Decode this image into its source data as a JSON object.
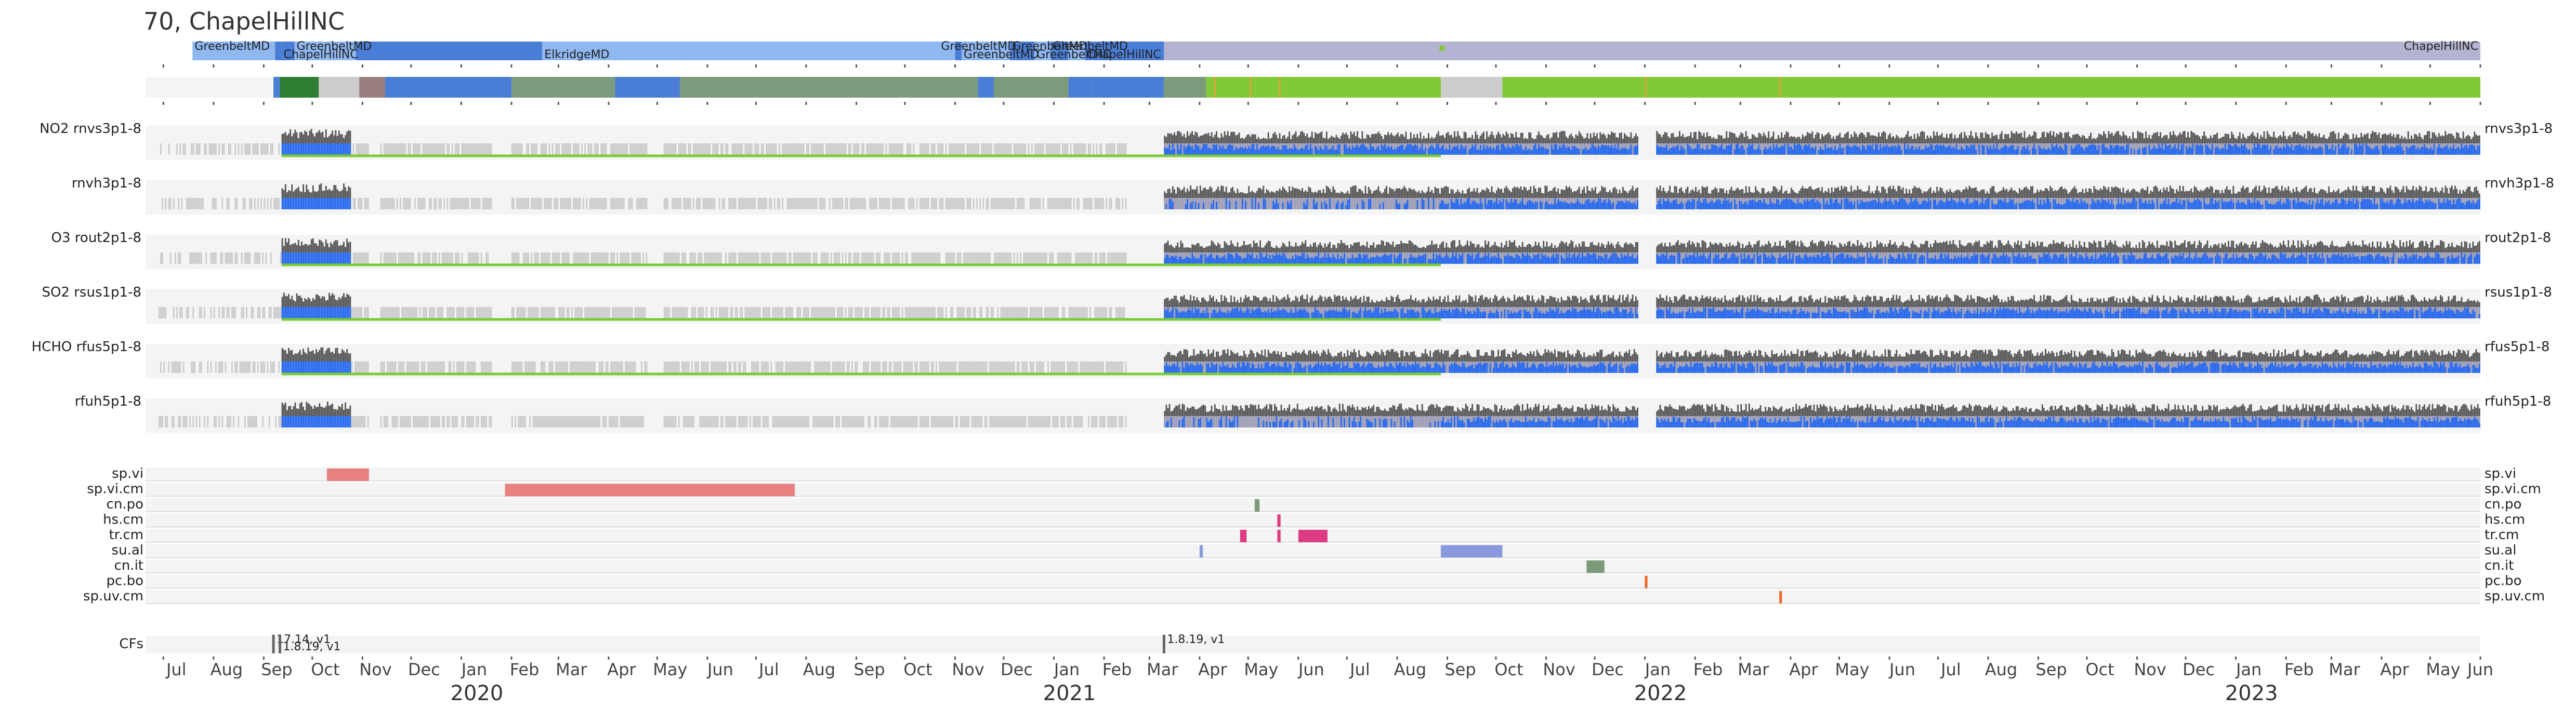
{
  "title": "70, ChapelHillNC",
  "colors": {
    "panel_bg": "#f4f4f4",
    "gray_bar": "#cccccc",
    "dark_bar": "#555555",
    "blue_bar": "#2266ee",
    "lavender_bar": "#9a9ab4",
    "green_line": "#77cc33",
    "loc_lavender": "#b4b4d2",
    "loc_blue": "#4a7ed6",
    "loc_lightblue": "#8fb7f0",
    "prog_green": "#82c93a",
    "prog_gray": "#7c9a7c",
    "prog_darkgreen": "#2e7d32",
    "flag_red": "#e88080",
    "flag_green": "#7a9a7a",
    "flag_pink": "#dd3c84",
    "flag_blue": "#8899dd",
    "flag_orange": "#ee6622",
    "cf_mark": "#666666"
  },
  "chart_data": {
    "type": "timeline",
    "title": "70, ChapelHillNC",
    "x_range": [
      "2019-06-20",
      "2023-06-01"
    ],
    "month_ticks": [
      "Jul",
      "Aug",
      "Sep",
      "Oct",
      "Nov",
      "Dec",
      "Jan",
      "Feb",
      "Mar",
      "Apr",
      "May",
      "Jun",
      "Jul",
      "Aug",
      "Sep",
      "Oct",
      "Nov",
      "Dec",
      "Jan",
      "Feb",
      "Mar",
      "Apr",
      "May",
      "Jun",
      "Jul",
      "Aug",
      "Sep",
      "Oct",
      "Nov",
      "Dec",
      "Jan",
      "Feb",
      "Mar",
      "Apr",
      "May",
      "Jun",
      "Jul",
      "Aug",
      "Sep",
      "Oct",
      "Nov",
      "Dec",
      "Jan",
      "Feb",
      "Mar",
      "Apr",
      "May",
      "Jun"
    ],
    "month_dates": [
      "2019-07-01",
      "2019-08-01",
      "2019-09-01",
      "2019-10-01",
      "2019-11-01",
      "2019-12-01",
      "2020-01-01",
      "2020-02-01",
      "2020-03-01",
      "2020-04-01",
      "2020-05-01",
      "2020-06-01",
      "2020-07-01",
      "2020-08-01",
      "2020-09-01",
      "2020-10-01",
      "2020-11-01",
      "2020-12-01",
      "2021-01-01",
      "2021-02-01",
      "2021-03-01",
      "2021-04-01",
      "2021-05-01",
      "2021-06-01",
      "2021-07-01",
      "2021-08-01",
      "2021-09-01",
      "2021-10-01",
      "2021-11-01",
      "2021-12-01",
      "2022-01-01",
      "2022-02-01",
      "2022-03-01",
      "2022-04-01",
      "2022-05-01",
      "2022-06-01",
      "2022-07-01",
      "2022-08-01",
      "2022-09-01",
      "2022-10-01",
      "2022-11-01",
      "2022-12-01",
      "2023-01-01",
      "2023-02-01",
      "2023-03-01",
      "2023-04-01",
      "2023-05-01",
      "2023-06-01"
    ],
    "years": [
      {
        "label": "2020",
        "date": "2020-01-01"
      },
      {
        "label": "2021",
        "date": "2021-01-01"
      },
      {
        "label": "2022",
        "date": "2022-01-01"
      },
      {
        "label": "2023",
        "date": "2023-01-01"
      }
    ],
    "locations": [
      {
        "start": "2019-06-20",
        "end": "2019-07-19",
        "color": "#ffffff",
        "label": ""
      },
      {
        "start": "2019-07-19",
        "end": "2019-09-08",
        "color": "#8fb7f0",
        "label": "GreenbeltMD",
        "row": 0
      },
      {
        "start": "2019-09-08",
        "end": "2019-09-12",
        "color": "#4a7ed6",
        "label": "",
        "row": 0
      },
      {
        "start": "2019-09-12",
        "end": "2019-09-20",
        "color": "#4a7ed6",
        "label": "ChapelHillNC",
        "row": 1
      },
      {
        "start": "2019-09-20",
        "end": "2019-10-28",
        "color": "#8fb7f0",
        "label": "GreenbeltMD",
        "row": 0
      },
      {
        "start": "2019-10-28",
        "end": "2020-02-20",
        "color": "#4a7ed6",
        "label": "",
        "row": 0
      },
      {
        "start": "2020-02-20",
        "end": "2020-10-22",
        "color": "#8fb7f0",
        "label": "ElkridgeMD",
        "row": 1
      },
      {
        "start": "2020-10-22",
        "end": "2020-11-01",
        "color": "#8fb7f0",
        "label": "GreenbeltMD",
        "row": 0
      },
      {
        "start": "2020-11-01",
        "end": "2020-11-05",
        "color": "#4a7ed6",
        "label": "",
        "row": 0
      },
      {
        "start": "2020-11-05",
        "end": "2020-12-05",
        "color": "#8fb7f0",
        "label": "GreenbeltMD",
        "row": 1
      },
      {
        "start": "2020-12-05",
        "end": "2020-12-20",
        "color": "#4a7ed6",
        "label": "GreenbeltMD",
        "row": 0
      },
      {
        "start": "2020-12-20",
        "end": "2020-12-30",
        "color": "#8fb7f0",
        "label": "GreenbeltMD",
        "row": 1
      },
      {
        "start": "2020-12-30",
        "end": "2021-01-10",
        "color": "#4a7ed6",
        "label": "GreenbeltMD",
        "row": 0
      },
      {
        "start": "2021-01-10",
        "end": "2021-01-20",
        "color": "#8fb7f0",
        "label": "",
        "row": 0
      },
      {
        "start": "2021-01-20",
        "end": "2021-03-10",
        "color": "#4a7ed6",
        "label": "ChapelHillNC",
        "row": 1
      },
      {
        "start": "2021-03-10",
        "end": "2023-06-01",
        "color": "#b4b4d2",
        "label": "ChapelHillNC",
        "row": 1
      }
    ],
    "program": [
      {
        "start": "2019-06-20",
        "end": "2019-09-07",
        "color": "#f4f4f4"
      },
      {
        "start": "2019-09-07",
        "end": "2019-09-11",
        "color": "#4a7ed6"
      },
      {
        "start": "2019-09-11",
        "end": "2019-09-15",
        "color": "#2e7d32"
      },
      {
        "start": "2019-09-15",
        "end": "2019-10-05",
        "color": "#2e7d32"
      },
      {
        "start": "2019-10-05",
        "end": "2019-10-30",
        "color": "#cccccc"
      },
      {
        "start": "2019-10-30",
        "end": "2019-11-15",
        "color": "#9a7f7f"
      },
      {
        "start": "2019-11-15",
        "end": "2020-02-01",
        "color": "#4a7ed6"
      },
      {
        "start": "2020-02-01",
        "end": "2020-04-05",
        "color": "#7c9a7c"
      },
      {
        "start": "2020-04-05",
        "end": "2020-05-15",
        "color": "#4a7ed6"
      },
      {
        "start": "2020-05-15",
        "end": "2020-11-15",
        "color": "#7c9a7c"
      },
      {
        "start": "2020-11-15",
        "end": "2020-11-25",
        "color": "#4a7ed6"
      },
      {
        "start": "2020-11-25",
        "end": "2021-01-10",
        "color": "#7c9a7c"
      },
      {
        "start": "2021-01-10",
        "end": "2021-01-25",
        "color": "#4a7ed6"
      },
      {
        "start": "2021-01-25",
        "end": "2021-03-10",
        "color": "#4a7ed6"
      },
      {
        "start": "2021-03-10",
        "end": "2021-04-05",
        "color": "#7c9a7c"
      },
      {
        "start": "2021-04-05",
        "end": "2021-08-28",
        "color": "#82c93a"
      },
      {
        "start": "2021-08-28",
        "end": "2021-10-05",
        "color": "#cccccc"
      },
      {
        "start": "2021-10-05",
        "end": "2023-06-01",
        "color": "#82c93a"
      }
    ],
    "rows": [
      {
        "label": "NO2  rnvs3p1-8",
        "right_label": "rnvs3p1-8",
        "green_line_end": "2021-08-28",
        "pattern": "nvs"
      },
      {
        "label": "rnvh3p1-8",
        "right_label": "rnvh3p1-8",
        "green_line_end": "",
        "pattern": "nvh"
      },
      {
        "label": "O3  rout2p1-8",
        "right_label": "rout2p1-8",
        "green_line_end": "2021-08-28",
        "pattern": "out"
      },
      {
        "label": "SO2  rsus1p1-8",
        "right_label": "rsus1p1-8",
        "green_line_end": "2021-08-28",
        "pattern": "sus"
      },
      {
        "label": "HCHO  rfus5p1-8",
        "right_label": "rfus5p1-8",
        "green_line_end": "2021-08-28",
        "pattern": "fus"
      },
      {
        "label": "rfuh5p1-8",
        "right_label": "rfuh5p1-8",
        "green_line_end": "",
        "pattern": "fuh"
      }
    ],
    "flags": [
      {
        "name": "sp.vi",
        "intervals": [
          {
            "start": "2019-10-10",
            "end": "2019-11-05",
            "color": "#e88080"
          }
        ]
      },
      {
        "name": "sp.vi.cm",
        "intervals": [
          {
            "start": "2020-01-28",
            "end": "2020-07-25",
            "color": "#e88080"
          }
        ]
      },
      {
        "name": "cn.po",
        "intervals": [
          {
            "start": "2021-05-05",
            "end": "2021-05-08",
            "color": "#7a9a7a"
          }
        ]
      },
      {
        "name": "hs.cm",
        "intervals": [
          {
            "start": "2021-05-19",
            "end": "2021-05-21",
            "color": "#dd3c84"
          }
        ]
      },
      {
        "name": "tr.cm",
        "intervals": [
          {
            "start": "2021-04-26",
            "end": "2021-04-30",
            "color": "#dd3c84"
          },
          {
            "start": "2021-05-19",
            "end": "2021-05-21",
            "color": "#dd3c84"
          },
          {
            "start": "2021-06-01",
            "end": "2021-06-19",
            "color": "#dd3c84"
          }
        ]
      },
      {
        "name": "su.al",
        "intervals": [
          {
            "start": "2021-04-01",
            "end": "2021-04-03",
            "color": "#8899dd"
          },
          {
            "start": "2021-08-28",
            "end": "2021-10-05",
            "color": "#8899dd"
          }
        ]
      },
      {
        "name": "cn.it",
        "intervals": [
          {
            "start": "2021-11-26",
            "end": "2021-12-07",
            "color": "#7a9a7a"
          }
        ]
      },
      {
        "name": "pc.bo",
        "intervals": [
          {
            "start": "2022-01-01",
            "end": "2022-01-02",
            "color": "#ee6622"
          }
        ]
      },
      {
        "name": "sp.uv.cm",
        "intervals": [
          {
            "start": "2022-03-25",
            "end": "2022-03-26",
            "color": "#ee6622"
          }
        ]
      }
    ],
    "cfs": {
      "label": "CFs",
      "markers": [
        {
          "date": "2019-09-07",
          "text": "17.14, v1",
          "row": 0
        },
        {
          "date": "2019-09-11",
          "text": "1.8.19, v1",
          "row": 1
        },
        {
          "date": "2021-03-10",
          "text": "1.8.19, v1",
          "row": 0
        }
      ]
    }
  }
}
